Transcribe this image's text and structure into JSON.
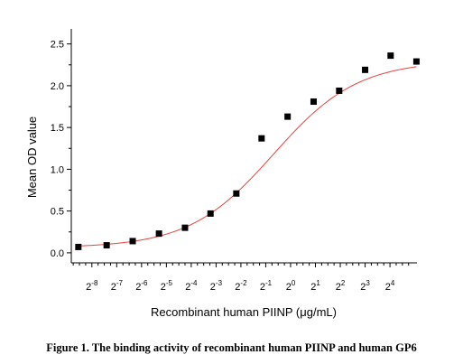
{
  "chart_data": {
    "type": "scatter",
    "title": "",
    "xlabel": "Recombinant human PIINP (μg/mL)",
    "ylabel": "Mean OD value",
    "x_scale": "log2",
    "x_tick_labels": [
      {
        "base": "2",
        "exp": "-8",
        "value": 0.00390625
      },
      {
        "base": "2",
        "exp": "-7",
        "value": 0.0078125
      },
      {
        "base": "2",
        "exp": "-6",
        "value": 0.015625
      },
      {
        "base": "2",
        "exp": "-5",
        "value": 0.03125
      },
      {
        "base": "2",
        "exp": "-4",
        "value": 0.0625
      },
      {
        "base": "2",
        "exp": "-3",
        "value": 0.125
      },
      {
        "base": "2",
        "exp": "-2",
        "value": 0.25
      },
      {
        "base": "2",
        "exp": "-1",
        "value": 0.5
      },
      {
        "base": "2",
        "exp": "0",
        "value": 1
      },
      {
        "base": "2",
        "exp": "1",
        "value": 2
      },
      {
        "base": "2",
        "exp": "2",
        "value": 4
      },
      {
        "base": "2",
        "exp": "3",
        "value": 8
      },
      {
        "base": "2",
        "exp": "4",
        "value": 16
      }
    ],
    "xlim": [
      0.0022,
      34
    ],
    "ylim": [
      -0.12,
      2.68
    ],
    "y_ticks": [
      "0.0",
      "0.5",
      "1.0",
      "1.5",
      "2.0",
      "2.5"
    ],
    "y_tick_values": [
      0,
      0.5,
      1.0,
      1.5,
      2.0,
      2.5
    ],
    "grid": false,
    "series": [
      {
        "marker": "square",
        "color": "#000000",
        "points": [
          {
            "x": 0.00268,
            "y": 0.07
          },
          {
            "x": 0.0059,
            "y": 0.09
          },
          {
            "x": 0.0122,
            "y": 0.14
          },
          {
            "x": 0.0254,
            "y": 0.23
          },
          {
            "x": 0.0525,
            "y": 0.3
          },
          {
            "x": 0.107,
            "y": 0.47
          },
          {
            "x": 0.22,
            "y": 0.71
          },
          {
            "x": 0.445,
            "y": 1.37
          },
          {
            "x": 0.92,
            "y": 1.63
          },
          {
            "x": 1.9,
            "y": 1.81
          },
          {
            "x": 3.88,
            "y": 1.94
          },
          {
            "x": 8.0,
            "y": 2.19
          },
          {
            "x": 16.3,
            "y": 2.36
          },
          {
            "x": 33.5,
            "y": 2.29
          }
        ]
      }
    ],
    "fit_curve": {
      "type": "4PL",
      "color": "#e8413c",
      "bottom": 0.06,
      "top": 2.3,
      "ec50": 0.62,
      "hill": 0.85
    }
  },
  "caption": "Figure 1. The binding activity of recombinant human PIINP and human GP6"
}
